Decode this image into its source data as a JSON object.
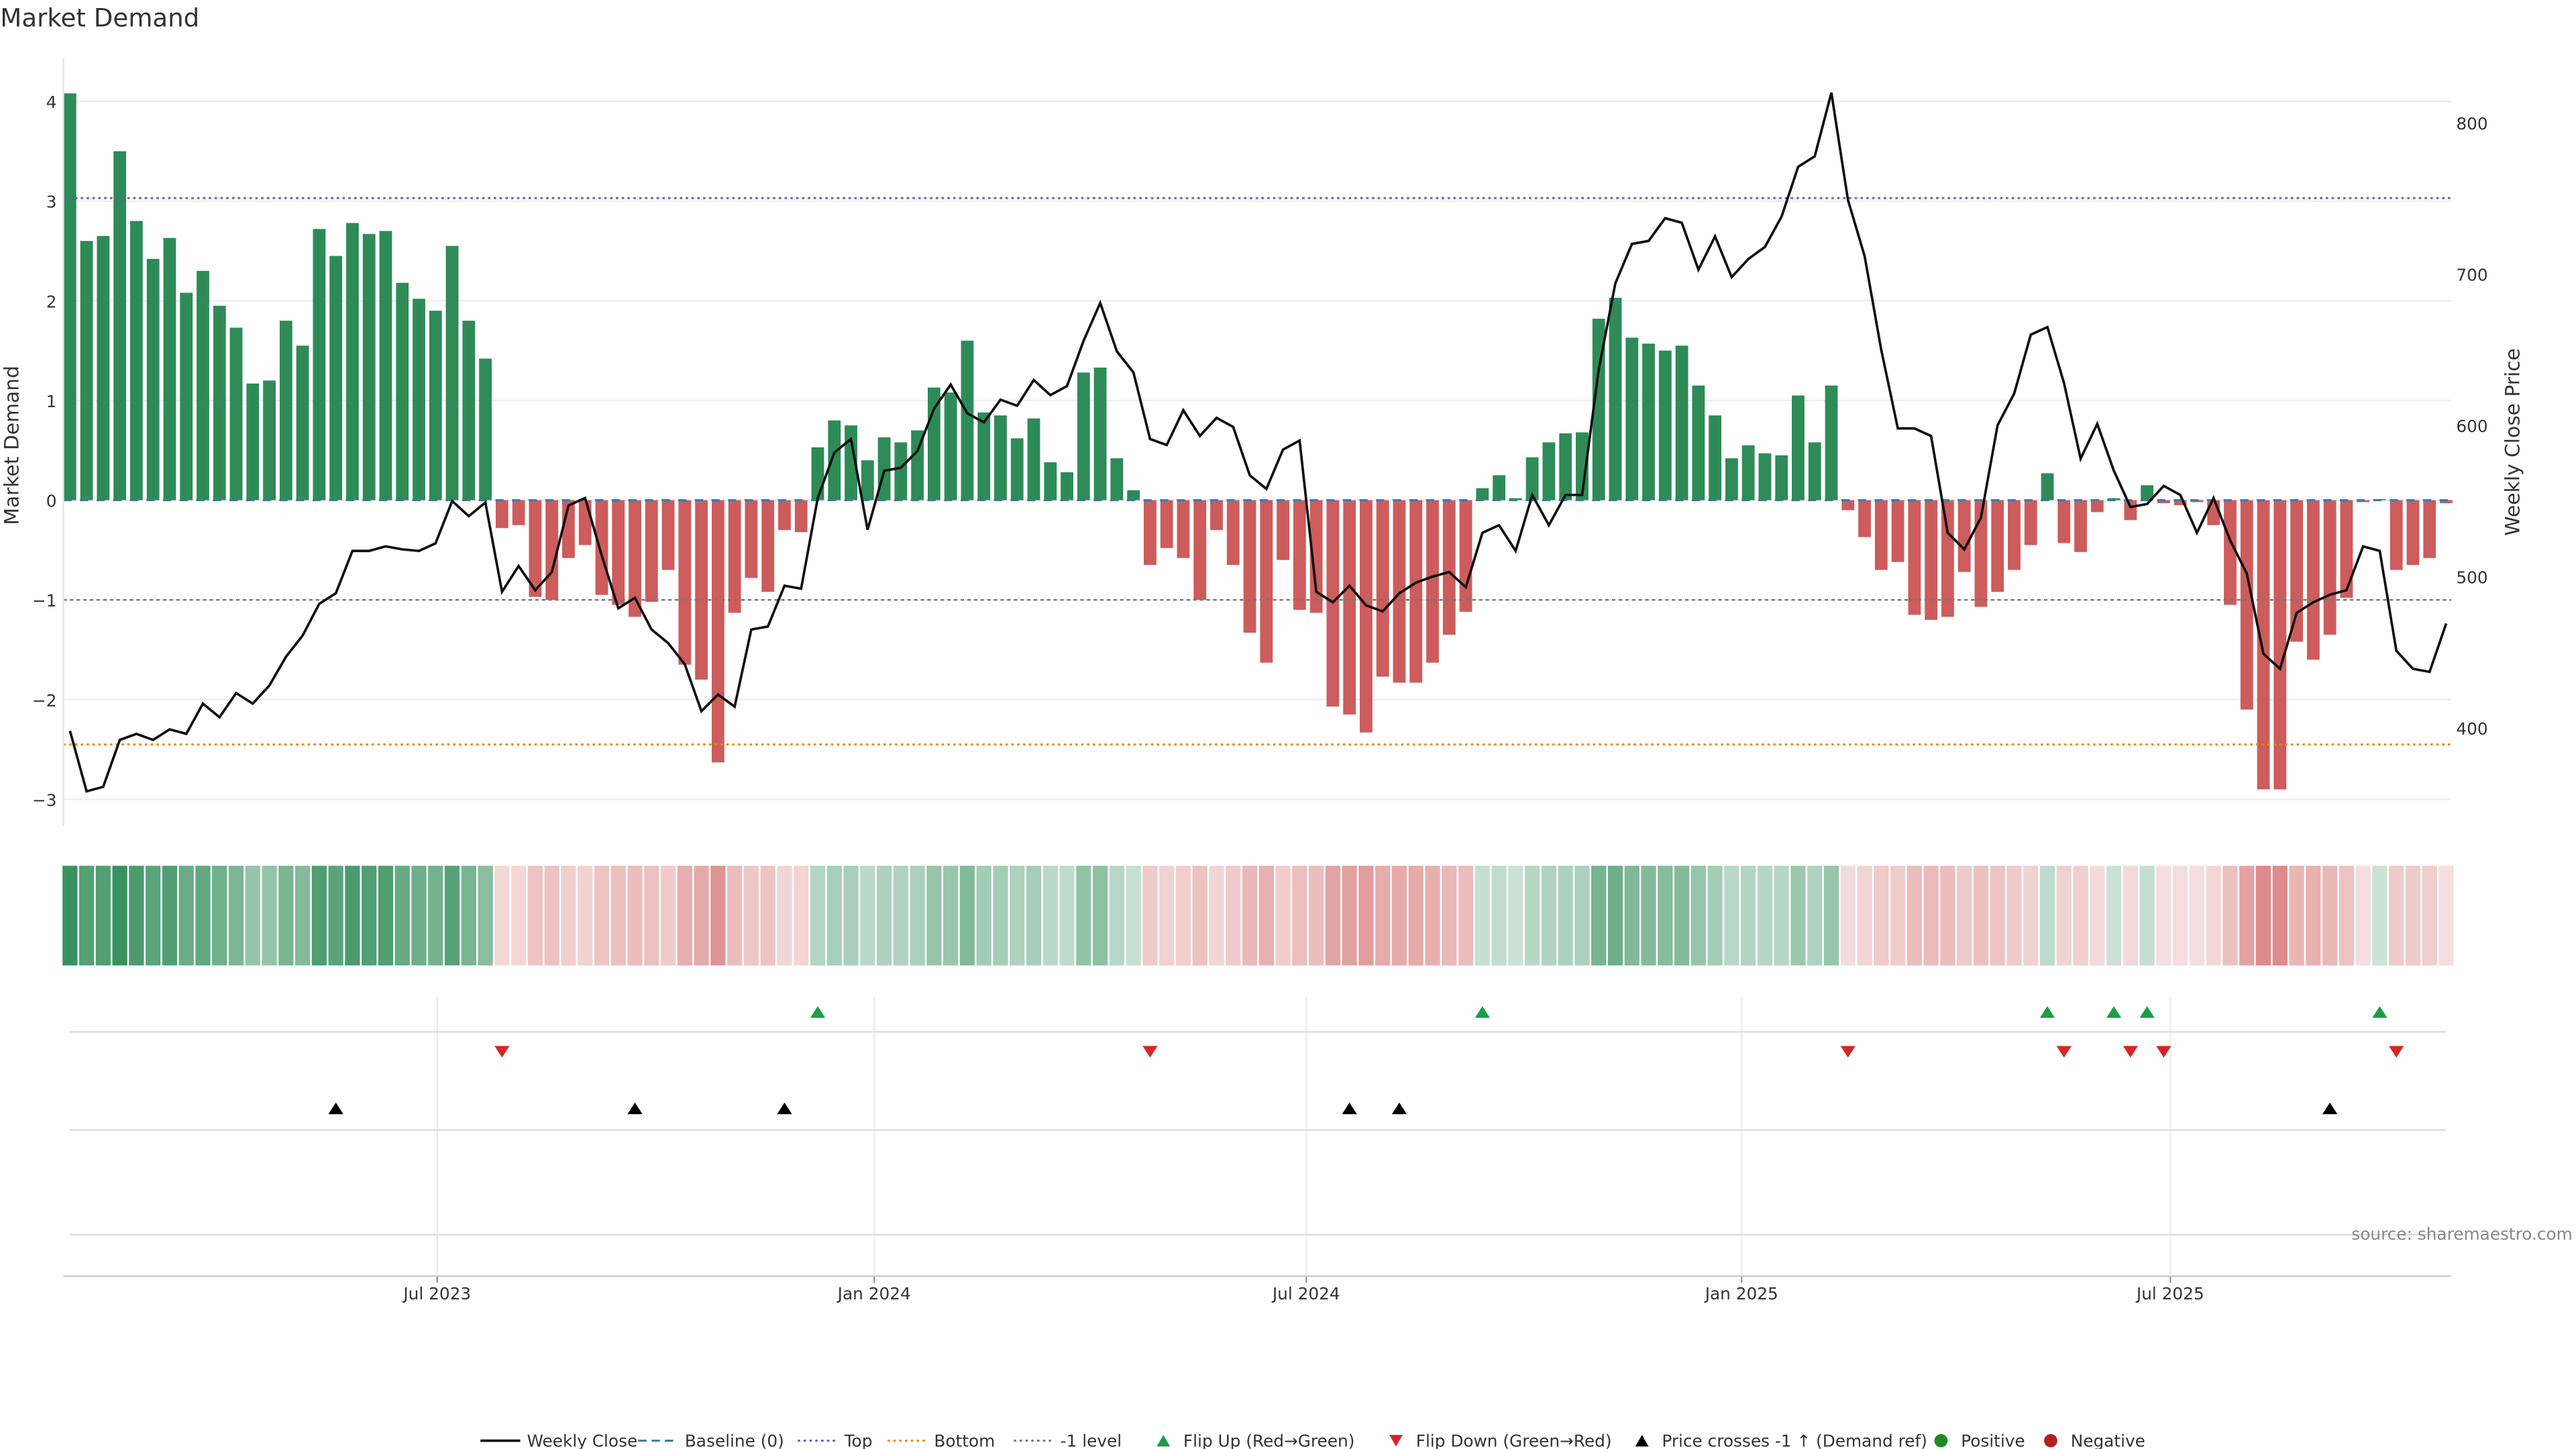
{
  "chart_data": {
    "type": "bar",
    "title": "Market Demand",
    "ylabel": "Market Demand",
    "y2label": "Weekly Close Price",
    "ylim": [
      -3.3,
      4.3
    ],
    "y2lim": [
      350,
      830
    ],
    "yticks": [
      "4",
      "3",
      "2",
      "1",
      "0",
      "−1",
      "−2",
      "−3"
    ],
    "ytick_values": [
      4,
      3,
      2,
      1,
      0,
      -1,
      -2,
      -3
    ],
    "y2ticks": [
      "800",
      "700",
      "600",
      "500",
      "400"
    ],
    "y2tick_values": [
      800,
      700,
      600,
      500,
      400
    ],
    "xticks": [
      "Jul 2023",
      "Jan 2024",
      "Jul 2024",
      "Jan 2025",
      "Jul 2025"
    ],
    "xtick_week_index": [
      22.1,
      48.4,
      74.4,
      100.6,
      126.4
    ],
    "grid": true,
    "reference_lines": {
      "baseline": 0,
      "top": 3.03,
      "bottom": -2.45,
      "minus_one": -1
    },
    "colors": {
      "positive": "#2e8b57",
      "negative": "#cd5c5c",
      "line": "#111111",
      "top": "#6a5acd",
      "bottom": "#e08a1e",
      "minus_one": "#777777",
      "baseline": "#3a78a8",
      "flip_up": "#1a9e46",
      "flip_down": "#d62728",
      "cross": "#000000"
    },
    "demand": [
      4.08,
      2.6,
      2.65,
      3.5,
      2.8,
      2.42,
      2.63,
      2.08,
      2.3,
      1.95,
      1.73,
      1.17,
      1.2,
      1.8,
      1.55,
      2.72,
      2.45,
      2.78,
      2.67,
      2.7,
      2.18,
      2.02,
      1.9,
      2.55,
      1.8,
      1.42,
      -0.28,
      -0.25,
      -0.97,
      -1.0,
      -0.58,
      -0.45,
      -0.95,
      -1.05,
      -1.17,
      -1.02,
      -0.7,
      -1.65,
      -1.8,
      -2.63,
      -1.13,
      -0.78,
      -0.92,
      -0.3,
      -0.32,
      0.53,
      0.8,
      0.75,
      0.4,
      0.63,
      0.58,
      0.7,
      1.13,
      1.08,
      1.6,
      0.88,
      0.85,
      0.62,
      0.82,
      0.38,
      0.28,
      1.28,
      1.33,
      0.42,
      0.1,
      -0.65,
      -0.48,
      -0.58,
      -1.0,
      -0.3,
      -0.65,
      -1.33,
      -1.63,
      -0.6,
      -1.1,
      -1.13,
      -2.07,
      -2.15,
      -2.33,
      -1.77,
      -1.83,
      -1.83,
      -1.63,
      -1.35,
      -1.12,
      0.12,
      0.25,
      0.02,
      0.43,
      0.58,
      0.67,
      0.68,
      1.82,
      2.03,
      1.63,
      1.57,
      1.5,
      1.55,
      1.15,
      0.85,
      0.42,
      0.55,
      0.47,
      0.45,
      1.05,
      0.58,
      1.15,
      -0.1,
      -0.37,
      -0.7,
      -0.62,
      -1.15,
      -1.2,
      -1.17,
      -0.72,
      -1.07,
      -0.92,
      -0.7,
      -0.45,
      0.27,
      -0.43,
      -0.52,
      -0.12,
      0.02,
      -0.2,
      0.15,
      -0.03,
      -0.05,
      -0.02,
      -0.25,
      -1.05,
      -2.1,
      -2.9,
      -2.9,
      -1.42,
      -1.6,
      -1.35,
      -0.98,
      -0.02,
      0.01,
      -0.7,
      -0.65,
      -0.58,
      -0.03
    ],
    "weekly_close": [
      398,
      358,
      361,
      392,
      396,
      392,
      399,
      396,
      416,
      407,
      423,
      416,
      428,
      447,
      461,
      482,
      489,
      517,
      517,
      520,
      518,
      517,
      522,
      550,
      540,
      549,
      490,
      507,
      491,
      503,
      547,
      552,
      514,
      479,
      486,
      465,
      456,
      442,
      411,
      422,
      414,
      465,
      467,
      494,
      492,
      552,
      582,
      591,
      531,
      570,
      572,
      583,
      611,
      627,
      608,
      602,
      617,
      613,
      630,
      620,
      626,
      656,
      681,
      649,
      635,
      591,
      587,
      610,
      593,
      605,
      599,
      567,
      558,
      584,
      590,
      490,
      483,
      494,
      481,
      477,
      489,
      496,
      500,
      503,
      493,
      529,
      534,
      517,
      554,
      534,
      554,
      554,
      637,
      694,
      720,
      722,
      737,
      734,
      703,
      725,
      698,
      710,
      718,
      738,
      771,
      778,
      820,
      749,
      712,
      650,
      598,
      598,
      593,
      529,
      518,
      539,
      600,
      621,
      660,
      665,
      628,
      578,
      601,
      570,
      546,
      548,
      560,
      554,
      529,
      552,
      524,
      502,
      449,
      439,
      476,
      483,
      488,
      491,
      520,
      517,
      451,
      439,
      437,
      469
    ],
    "flip_up_weeks": [
      45,
      85,
      119,
      123,
      125,
      139
    ],
    "flip_down_weeks": [
      26,
      65,
      107,
      120,
      124,
      126,
      140
    ],
    "price_cross_weeks": [
      16,
      34,
      43,
      77,
      80,
      136
    ],
    "legend": [
      "Weekly Close",
      "Baseline (0)",
      "Top",
      "Bottom",
      "-1 level",
      "Flip Up (Red→Green)",
      "Flip Down (Green→Red)",
      "Price crosses -1 ↑ (Demand ref)",
      "Positive",
      "Negative"
    ],
    "legend_placement": "bottom-center",
    "source": "source: sharemaestro.com"
  }
}
